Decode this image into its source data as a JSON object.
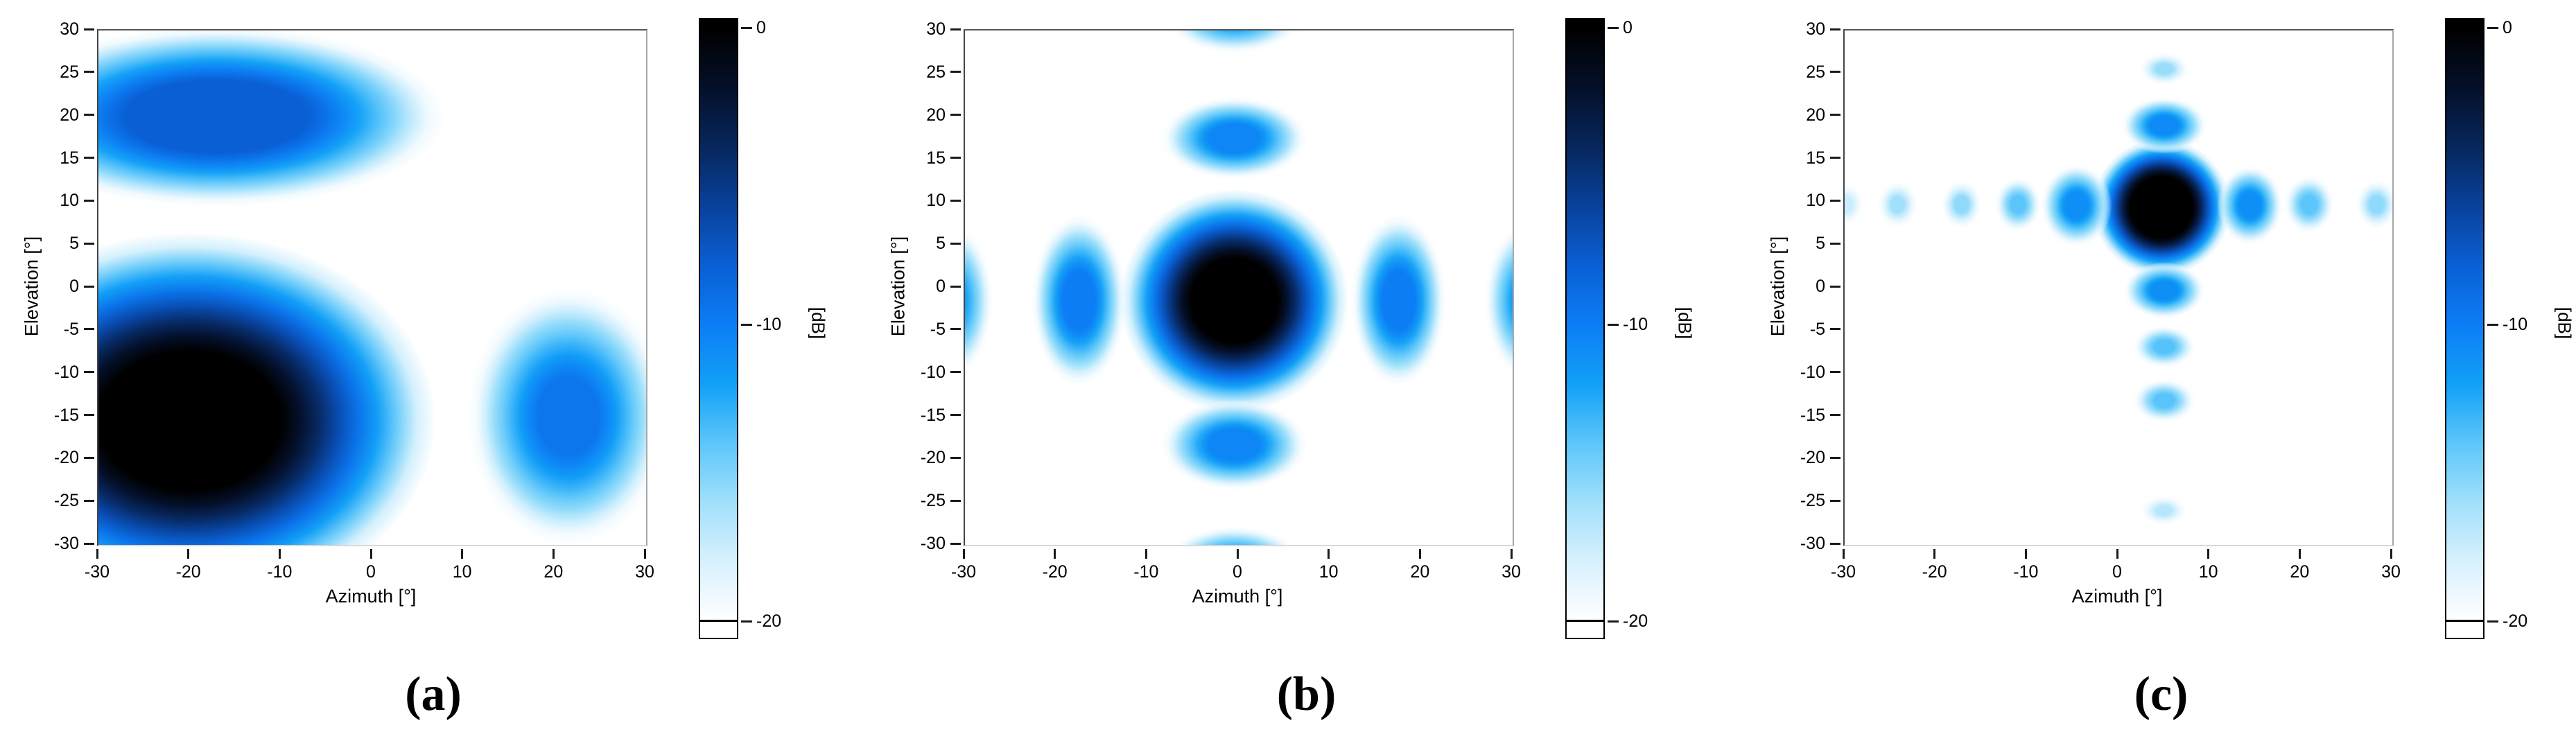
{
  "figure": {
    "background": "#ffffff",
    "frame_color": "#565656",
    "colormap": [
      {
        "db": 0,
        "hex": "#000000"
      },
      {
        "db": -2,
        "hex": "#041029"
      },
      {
        "db": -4,
        "hex": "#07265c"
      },
      {
        "db": -6,
        "hex": "#09419b"
      },
      {
        "db": -8,
        "hex": "#0a5fd4"
      },
      {
        "db": -10,
        "hex": "#0c7df5"
      },
      {
        "db": -12,
        "hex": "#12a0f7"
      },
      {
        "db": -14,
        "hex": "#5cc6fa"
      },
      {
        "db": -16,
        "hex": "#a0e0fb"
      },
      {
        "db": -18,
        "hex": "#d8f1fd"
      },
      {
        "db": -20,
        "hex": "#ffffff"
      }
    ]
  },
  "chart_data": [
    {
      "type": "heatmap",
      "caption": "(a)",
      "xlabel": "Azimuth [°]",
      "ylabel": "Elevation [°]",
      "xlim": [
        -30,
        30
      ],
      "ylim": [
        -30,
        30
      ],
      "xticks": [
        -30,
        -20,
        -10,
        0,
        10,
        20,
        30
      ],
      "yticks": [
        30,
        25,
        20,
        15,
        10,
        5,
        0,
        -5,
        -10,
        -15,
        -20,
        -25,
        -30
      ],
      "colorbar": {
        "label": "[dB]",
        "ticks": [
          0,
          -10,
          -20
        ],
        "range": [
          0,
          -20
        ]
      },
      "grid": false,
      "lobes": [
        {
          "az": -20,
          "el": -15.5,
          "rx": 27,
          "ry": 22,
          "peak": 0,
          "core": 0.37
        },
        {
          "az": -17,
          "el": 20,
          "rx": 25,
          "ry": 10.5,
          "peak": -8,
          "core": 0.4
        },
        {
          "az": 21.5,
          "el": -15,
          "rx": 11,
          "ry": 15,
          "peak": -9.5,
          "core": 0.3
        }
      ]
    },
    {
      "type": "heatmap",
      "caption": "(b)",
      "xlabel": "Azimuth [°]",
      "ylabel": "Elevation [°]",
      "xlim": [
        -30,
        30
      ],
      "ylim": [
        -30,
        30
      ],
      "xticks": [
        -30,
        -20,
        -10,
        0,
        10,
        20,
        30
      ],
      "yticks": [
        30,
        25,
        20,
        15,
        10,
        5,
        0,
        -5,
        -10,
        -15,
        -20,
        -25,
        -30
      ],
      "colorbar": {
        "label": "[dB]",
        "ticks": [
          0,
          -10,
          -20
        ],
        "range": [
          0,
          -20
        ]
      },
      "grid": false,
      "lobes": [
        {
          "az": -0.5,
          "el": -1.5,
          "rx": 12.5,
          "ry": 13,
          "peak": 0,
          "core": 0.38
        },
        {
          "az": -17.5,
          "el": -1.5,
          "rx": 5.2,
          "ry": 10,
          "peak": -10,
          "core": 0.34
        },
        {
          "az": 17.5,
          "el": -1.5,
          "rx": 5.2,
          "ry": 10,
          "peak": -10,
          "core": 0.34
        },
        {
          "az": -31.5,
          "el": -1.5,
          "rx": 4.6,
          "ry": 9,
          "peak": -11.5,
          "core": 0.3
        },
        {
          "az": 31.5,
          "el": -1.5,
          "rx": 4.6,
          "ry": 9,
          "peak": -11.5,
          "core": 0.3
        },
        {
          "az": -0.5,
          "el": 17.4,
          "rx": 8,
          "ry": 4.8,
          "peak": -10.5,
          "core": 0.34
        },
        {
          "az": -0.5,
          "el": -18.3,
          "rx": 8,
          "ry": 5.3,
          "peak": -10.5,
          "core": 0.34
        },
        {
          "az": -0.5,
          "el": 31.5,
          "rx": 7.5,
          "ry": 4.2,
          "peak": -12,
          "core": 0.3
        },
        {
          "az": -0.5,
          "el": -32,
          "rx": 7.5,
          "ry": 4.2,
          "peak": -11.5,
          "core": 0.3
        }
      ]
    },
    {
      "type": "heatmap",
      "caption": "(c)",
      "xlabel": "Azimuth [°]",
      "ylabel": "Elevation [°]",
      "xlim": [
        -30,
        30
      ],
      "ylim": [
        -30,
        30
      ],
      "xticks": [
        -30,
        -20,
        -10,
        0,
        10,
        20,
        30
      ],
      "yticks": [
        30,
        25,
        20,
        15,
        10,
        5,
        0,
        -5,
        -10,
        -15,
        -20,
        -25,
        -30
      ],
      "colorbar": {
        "label": "[dB]",
        "ticks": [
          0,
          -10,
          -20
        ],
        "range": [
          0,
          -20
        ]
      },
      "grid": false,
      "lobes": [
        {
          "az": 4.7,
          "el": 9.4,
          "rx": 7.6,
          "ry": 8,
          "peak": 0,
          "core": 0.45
        },
        {
          "az": -4.6,
          "el": 9.6,
          "rx": 3.9,
          "ry": 4.8,
          "peak": -11,
          "core": 0.32
        },
        {
          "az": -11,
          "el": 9.7,
          "rx": 2.6,
          "ry": 3.2,
          "peak": -14,
          "core": 0.3
        },
        {
          "az": -17.2,
          "el": 9.7,
          "rx": 2.3,
          "ry": 2.9,
          "peak": -15.5,
          "core": 0.3
        },
        {
          "az": -24.2,
          "el": 9.7,
          "rx": 2.3,
          "ry": 2.8,
          "peak": -16,
          "core": 0.3
        },
        {
          "az": -29.8,
          "el": 9.7,
          "rx": 2.1,
          "ry": 2.7,
          "peak": -17,
          "core": 0.3
        },
        {
          "az": 14.4,
          "el": 9.6,
          "rx": 3.6,
          "ry": 4.6,
          "peak": -11,
          "core": 0.32
        },
        {
          "az": 20.9,
          "el": 9.7,
          "rx": 2.8,
          "ry": 3.4,
          "peak": -14,
          "core": 0.3
        },
        {
          "az": 28.3,
          "el": 9.7,
          "rx": 2.4,
          "ry": 3.0,
          "peak": -15.5,
          "core": 0.3
        },
        {
          "az": 5,
          "el": 25.5,
          "rx": 2.9,
          "ry": 2.0,
          "peak": -15.8,
          "core": 0.3
        },
        {
          "az": 5,
          "el": 18.9,
          "rx": 4.7,
          "ry": 3.3,
          "peak": -10.8,
          "core": 0.32
        },
        {
          "az": 5,
          "el": -0.3,
          "rx": 4.5,
          "ry": 3.3,
          "peak": -11,
          "core": 0.32
        },
        {
          "az": 5,
          "el": -6.9,
          "rx": 3.5,
          "ry": 2.5,
          "peak": -13.8,
          "core": 0.3
        },
        {
          "az": 5,
          "el": -13.2,
          "rx": 3.5,
          "ry": 2.6,
          "peak": -13.9,
          "core": 0.3
        },
        {
          "az": 5,
          "el": -26,
          "rx": 2.7,
          "ry": 1.8,
          "peak": -16.5,
          "core": 0.3
        }
      ]
    }
  ]
}
